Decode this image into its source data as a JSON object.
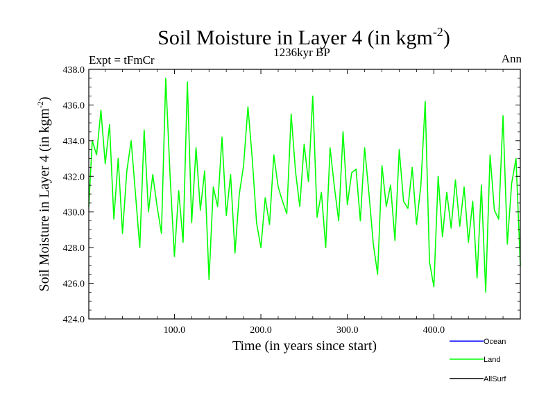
{
  "chart_data": {
    "type": "line",
    "title": "Soil Moisture in Layer 4 (in kgm",
    "title_sup": "-2",
    "title_end": ")",
    "subtitle": "1236kyr BP",
    "left_label": "Expt = tFmCr",
    "right_label": "Ann",
    "xlabel": "Time (in years since start)",
    "ylabel": "Soil Moisture in Layer 4 (in kgm",
    "ylabel_sup": "-2",
    "ylabel_end": ")",
    "xlim": [
      1,
      500
    ],
    "ylim": [
      424,
      438
    ],
    "xticks": [
      100,
      200,
      300,
      400
    ],
    "xtick_labels": [
      "100.0",
      "200.0",
      "300.0",
      "400.0"
    ],
    "yticks": [
      424,
      426,
      428,
      430,
      432,
      434,
      436,
      438
    ],
    "ytick_labels": [
      "424.0",
      "426.0",
      "428.0",
      "430.0",
      "432.0",
      "434.0",
      "436.0",
      "438.0"
    ],
    "legend": [
      {
        "name": "Ocean",
        "color": "#0000ff"
      },
      {
        "name": "Land",
        "color": "#00ff00"
      },
      {
        "name": "AllSurf",
        "color": "#000000"
      }
    ],
    "series": [
      {
        "name": "Land",
        "color": "#00ff00",
        "x": [
          1,
          5,
          10,
          15,
          20,
          25,
          30,
          35,
          40,
          45,
          50,
          55,
          60,
          65,
          70,
          75,
          80,
          85,
          90,
          95,
          100,
          105,
          110,
          115,
          120,
          125,
          130,
          135,
          140,
          145,
          150,
          155,
          160,
          165,
          170,
          175,
          180,
          185,
          190,
          195,
          200,
          205,
          210,
          215,
          220,
          225,
          230,
          235,
          240,
          245,
          250,
          255,
          260,
          265,
          270,
          275,
          280,
          285,
          290,
          295,
          300,
          305,
          310,
          315,
          320,
          325,
          330,
          335,
          340,
          345,
          350,
          355,
          360,
          365,
          370,
          375,
          380,
          385,
          390,
          395,
          400,
          405,
          410,
          415,
          420,
          425,
          430,
          435,
          440,
          445,
          450,
          455,
          460,
          465,
          470,
          475,
          480,
          485,
          490,
          495,
          500
        ],
        "values": [
          430.3,
          434.0,
          433.2,
          435.7,
          432.7,
          434.9,
          429.6,
          433.0,
          428.8,
          432.3,
          434.0,
          431.0,
          428.0,
          434.6,
          430.0,
          432.1,
          430.3,
          428.8,
          437.5,
          432.0,
          427.5,
          431.2,
          428.3,
          437.3,
          429.4,
          433.6,
          430.1,
          432.3,
          426.2,
          431.4,
          430.3,
          434.2,
          429.8,
          432.1,
          427.7,
          431.0,
          432.6,
          435.9,
          433.0,
          429.4,
          428.0,
          430.8,
          429.3,
          433.2,
          431.4,
          430.6,
          429.9,
          435.5,
          432.3,
          430.3,
          433.8,
          431.7,
          436.5,
          429.7,
          431.1,
          428.0,
          433.6,
          431.4,
          429.5,
          434.5,
          430.4,
          432.2,
          432.4,
          429.5,
          433.6,
          431.0,
          428.2,
          426.5,
          432.6,
          430.3,
          431.5,
          428.4,
          433.5,
          430.6,
          430.2,
          432.5,
          429.3,
          431.5,
          436.2,
          427.2,
          425.8,
          432.0,
          428.6,
          431.1,
          429.1,
          431.8,
          429.2,
          431.4,
          428.3,
          430.6,
          426.3,
          431.5,
          425.5,
          433.2,
          430.1,
          429.6,
          435.4,
          428.2,
          431.6,
          433.0,
          427.0
        ]
      }
    ]
  }
}
